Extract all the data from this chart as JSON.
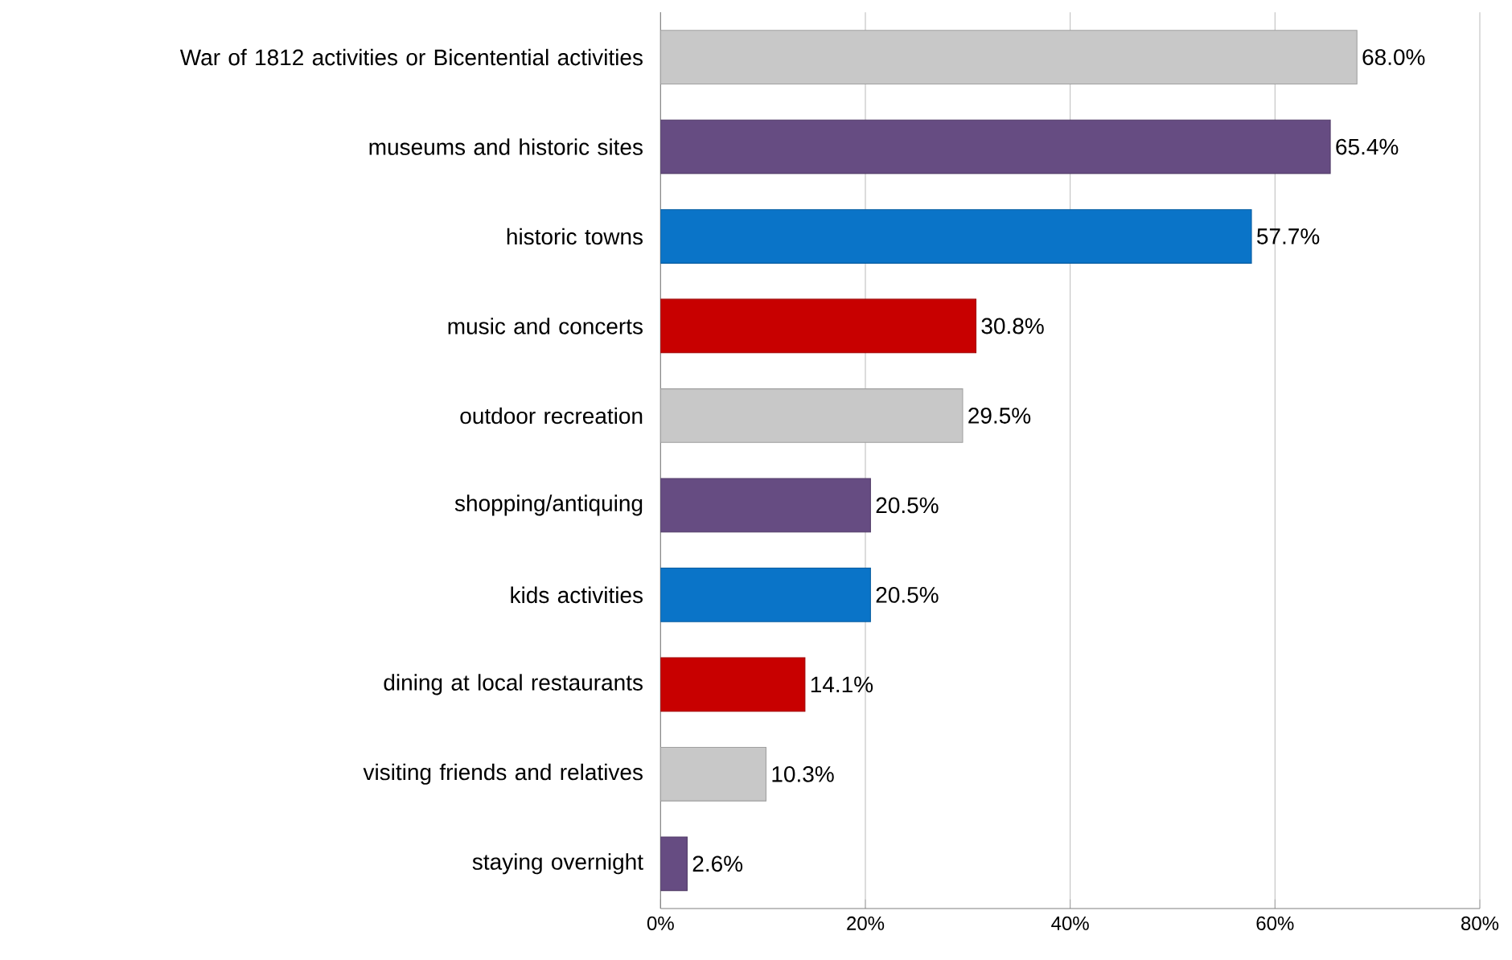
{
  "chart_data": {
    "type": "bar",
    "orientation": "horizontal",
    "categories": [
      "War of 1812 activities or Bicentential activities",
      "museums and historic sites",
      "historic towns",
      "music and concerts",
      "outdoor recreation",
      "shopping/antiquing",
      "kids activities",
      "dining at local restaurants",
      "visiting friends and relatives",
      "staying overnight"
    ],
    "values": [
      68.0,
      65.4,
      57.7,
      30.8,
      29.5,
      20.5,
      20.5,
      14.1,
      10.3,
      2.6
    ],
    "value_labels": [
      "68.0%",
      "65.4%",
      "57.7%",
      "30.8%",
      "29.5%",
      "20.5%",
      "20.5%",
      "14.1%",
      "10.3%",
      "2.6%"
    ],
    "colors": [
      "#c8c8c8",
      "#664c82",
      "#0a74c8",
      "#c80000",
      "#c8c8c8",
      "#664c82",
      "#0a74c8",
      "#c80000",
      "#c8c8c8",
      "#664c82"
    ],
    "xlim": [
      0,
      80
    ],
    "xticks": [
      {
        "value": 0,
        "label": "0%"
      },
      {
        "value": 20,
        "label": "20%"
      },
      {
        "value": 40,
        "label": "40%"
      },
      {
        "value": 60,
        "label": "60%"
      },
      {
        "value": 80,
        "label": "80%"
      }
    ],
    "grid": "x"
  }
}
